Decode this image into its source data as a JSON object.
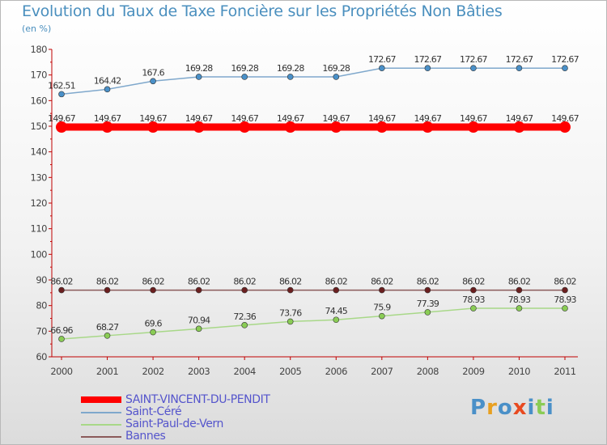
{
  "chart_data": {
    "type": "line",
    "title": "Evolution du Taux de Taxe Foncière sur les Propriétés Non Bâties",
    "unit_label": "(en %)",
    "x": [
      "2000",
      "2001",
      "2002",
      "2003",
      "2004",
      "2005",
      "2006",
      "2007",
      "2008",
      "2009",
      "2010",
      "2011"
    ],
    "ylim": [
      60,
      180
    ],
    "y_ticks": [
      60,
      70,
      80,
      90,
      100,
      110,
      120,
      130,
      140,
      150,
      160,
      170,
      180
    ],
    "series": [
      {
        "name": "SAINT-VINCENT-DU-PENDIT",
        "color": "#ff0000",
        "marker_color": "#ff0000",
        "values": [
          149.67,
          149.67,
          149.67,
          149.67,
          149.67,
          149.67,
          149.67,
          149.67,
          149.67,
          149.67,
          149.67,
          149.67
        ],
        "labels": [
          "149.67",
          "149.67",
          "149.67",
          "149.67",
          "149.67",
          "149.67",
          "149.67",
          "149.67",
          "149.67",
          "149.67",
          "149.67",
          "149.67"
        ]
      },
      {
        "name": "Saint-Céré",
        "color": "#7fa8cc",
        "marker_color": "#4a90c8",
        "values": [
          162.51,
          164.42,
          167.6,
          169.28,
          169.28,
          169.28,
          169.28,
          172.67,
          172.67,
          172.67,
          172.67,
          172.67
        ],
        "labels": [
          "162.51",
          "164.42",
          "167.6",
          "169.28",
          "169.28",
          "169.28",
          "169.28",
          "172.67",
          "172.67",
          "172.67",
          "172.67",
          "172.67"
        ]
      },
      {
        "name": "Saint-Paul-de-Vern",
        "color": "#a8d888",
        "marker_color": "#8acc55",
        "values": [
          66.96,
          68.27,
          69.6,
          70.94,
          72.36,
          73.76,
          74.45,
          75.9,
          77.39,
          78.93,
          78.93,
          78.93
        ],
        "labels": [
          "66.96",
          "68.27",
          "69.6",
          "70.94",
          "72.36",
          "73.76",
          "74.45",
          "75.9",
          "77.39",
          "78.93",
          "78.93",
          "78.93"
        ]
      },
      {
        "name": "Bannes",
        "color": "#8b5a5a",
        "marker_color": "#6b1f1f",
        "values": [
          86.02,
          86.02,
          86.02,
          86.02,
          86.02,
          86.02,
          86.02,
          86.02,
          86.02,
          86.02,
          86.02,
          86.02
        ],
        "labels": [
          "86.02",
          "86.02",
          "86.02",
          "86.02",
          "86.02",
          "86.02",
          "86.02",
          "86.02",
          "86.02",
          "86.02",
          "86.02",
          "86.02"
        ]
      }
    ]
  },
  "logo": {
    "letters": [
      "P",
      "r",
      "o",
      "x",
      "i",
      "t",
      "i"
    ],
    "colors": [
      "#4a90c8",
      "#e8a020",
      "#4a90c8",
      "#e84a20",
      "#4a90c8",
      "#8acc55",
      "#4a90c8"
    ]
  }
}
